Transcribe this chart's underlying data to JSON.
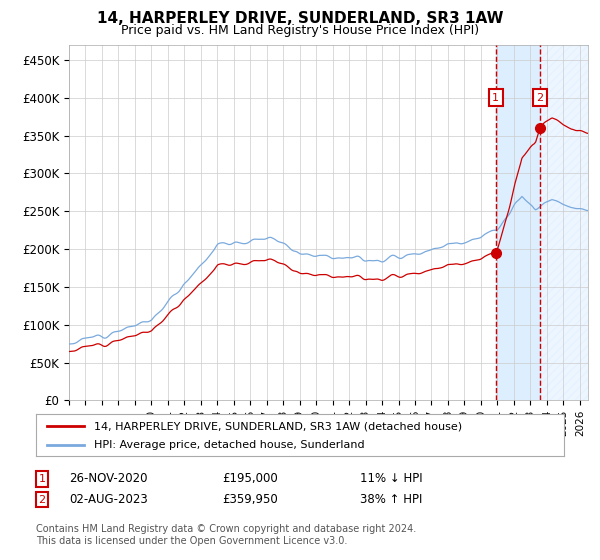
{
  "title": "14, HARPERLEY DRIVE, SUNDERLAND, SR3 1AW",
  "subtitle": "Price paid vs. HM Land Registry's House Price Index (HPI)",
  "hpi_label": "HPI: Average price, detached house, Sunderland",
  "property_label": "14, HARPERLEY DRIVE, SUNDERLAND, SR3 1AW (detached house)",
  "sale1_date": "26-NOV-2020",
  "sale1_price": 195000,
  "sale1_hpi_pct": "11% ↓ HPI",
  "sale2_date": "02-AUG-2023",
  "sale2_price": 359950,
  "sale2_hpi_pct": "38% ↑ HPI",
  "ylabel_ticks": [
    "£0",
    "£50K",
    "£100K",
    "£150K",
    "£200K",
    "£250K",
    "£300K",
    "£350K",
    "£400K",
    "£450K"
  ],
  "ylim": [
    0,
    470000
  ],
  "hpi_color": "#7aaadd",
  "property_color": "#cc0000",
  "vline_color": "#cc0000",
  "shade_color": "#ddeeff",
  "grid_color": "#cccccc",
  "bg_color": "#ffffff",
  "footer": "Contains HM Land Registry data © Crown copyright and database right 2024.\nThis data is licensed under the Open Government Licence v3.0.",
  "annotation_box_color": "#cc0000",
  "sale1_year": 2020.92,
  "sale2_year": 2023.58
}
